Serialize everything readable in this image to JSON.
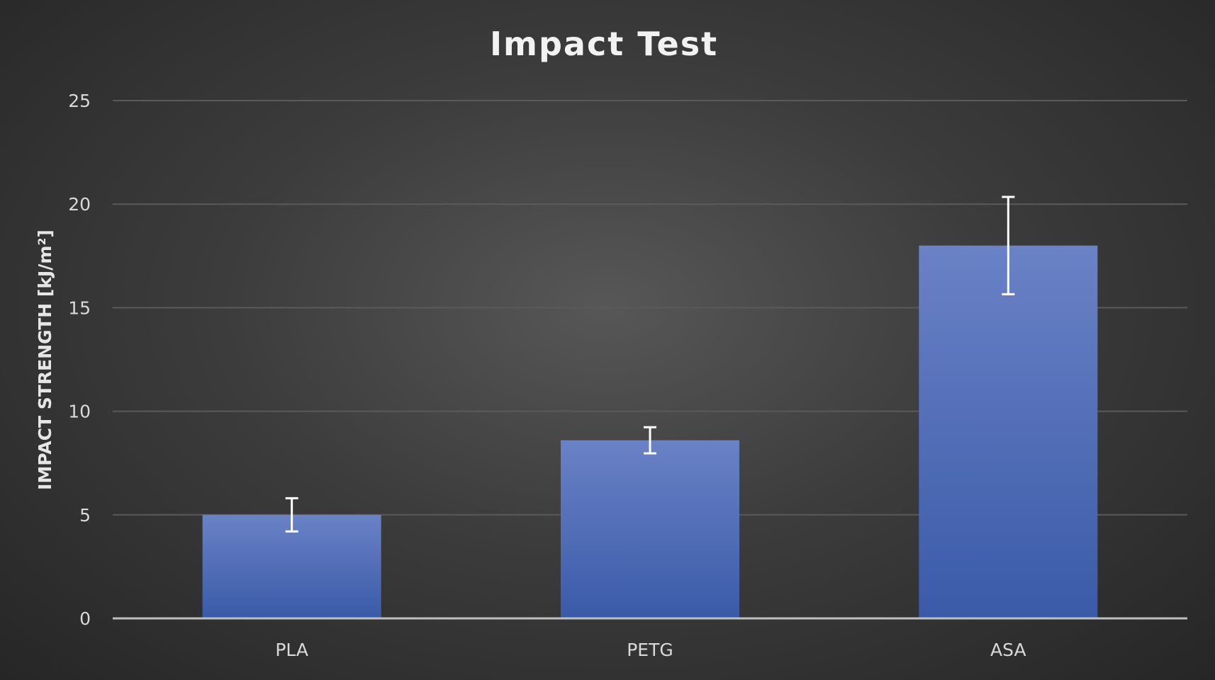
{
  "chart_data": {
    "type": "bar",
    "title": "Impact Test",
    "xlabel": "",
    "ylabel": "IMPACT STRENGTH [kJ/m²]",
    "categories": [
      "PLA",
      "PETG",
      "ASA"
    ],
    "values": [
      5.0,
      8.6,
      18.0
    ],
    "error": [
      0.8,
      0.63,
      2.35
    ],
    "ylim": [
      0,
      25
    ],
    "yticks": [
      0,
      5,
      10,
      15,
      20,
      25
    ],
    "grid": true,
    "legend": "none",
    "colors": {
      "bar_top": "#6a82c6",
      "bar_bottom": "#3a5aa8",
      "grid": "#5a5a5a",
      "error_bar": "#ffffff"
    }
  }
}
